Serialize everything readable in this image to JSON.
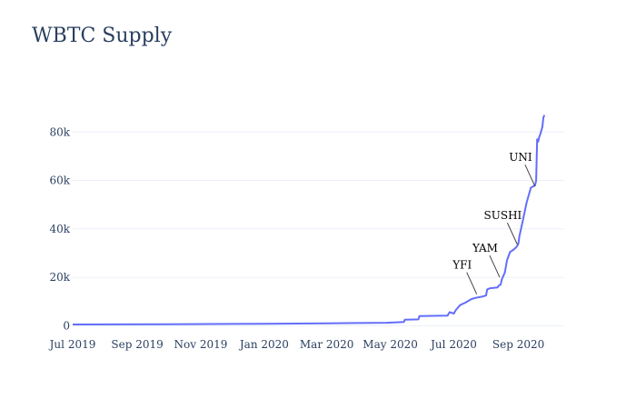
{
  "chart_data": {
    "type": "line",
    "title": "WBTC Supply",
    "xlabel": "",
    "ylabel": "",
    "x_range": [
      "2019-07-01",
      "2020-10-15"
    ],
    "ylim": [
      -2500,
      97000
    ],
    "y_ticks": [
      0,
      20000,
      40000,
      60000,
      80000
    ],
    "y_tick_labels": [
      "0",
      "20k",
      "40k",
      "60k",
      "80k"
    ],
    "x_ticks": [
      "2019-07-01",
      "2019-09-01",
      "2019-11-01",
      "2020-01-01",
      "2020-03-01",
      "2020-05-01",
      "2020-07-01",
      "2020-09-01"
    ],
    "x_tick_labels": [
      "Jul 2019",
      "Sep 2019",
      "Nov 2019",
      "Jan 2020",
      "Mar 2020",
      "May 2020",
      "Jul 2020",
      "Sep 2020"
    ],
    "grid": true,
    "colors": {
      "line": "#636efa",
      "grid": "#ebf0f8",
      "text": "#2a3f5f"
    },
    "series": [
      {
        "x": [
          "2019-07-01",
          "2019-10-01",
          "2020-01-01",
          "2020-03-01",
          "2020-04-01",
          "2020-04-28",
          "2020-05-14",
          "2020-05-15",
          "2020-05-28",
          "2020-05-29",
          "2020-06-25",
          "2020-06-27",
          "2020-07-01",
          "2020-07-03",
          "2020-07-07",
          "2020-07-12",
          "2020-07-18",
          "2020-07-22",
          "2020-07-28",
          "2020-08-01",
          "2020-08-02",
          "2020-08-05",
          "2020-08-12",
          "2020-08-13",
          "2020-08-15",
          "2020-08-16",
          "2020-08-19",
          "2020-08-21",
          "2020-08-24",
          "2020-08-26",
          "2020-08-29",
          "2020-08-31",
          "2020-09-01",
          "2020-09-02",
          "2020-09-05",
          "2020-09-09",
          "2020-09-13",
          "2020-09-17",
          "2020-09-18",
          "2020-09-19",
          "2020-09-20",
          "2020-09-21",
          "2020-09-22",
          "2020-09-24",
          "2020-09-25",
          "2020-09-26"
        ],
        "y": [
          500,
          600,
          800,
          1000,
          1100,
          1200,
          1500,
          2500,
          2600,
          4000,
          4200,
          5600,
          5000,
          6500,
          8500,
          9500,
          11000,
          11500,
          12000,
          12500,
          15000,
          15500,
          15800,
          16500,
          17000,
          19000,
          22000,
          27000,
          30500,
          31000,
          32000,
          33000,
          34000,
          37000,
          43000,
          51000,
          57000,
          58000,
          60000,
          77000,
          76000,
          78000,
          79000,
          82000,
          86000,
          87000
        ]
      }
    ],
    "annotations": [
      {
        "text": "YFI",
        "x": "2020-07-23",
        "y": 13000
      },
      {
        "text": "YAM",
        "x": "2020-08-14",
        "y": 20000
      },
      {
        "text": "SUSHI",
        "x": "2020-08-31",
        "y": 33500
      },
      {
        "text": "UNI",
        "x": "2020-09-17",
        "y": 57500
      }
    ]
  }
}
